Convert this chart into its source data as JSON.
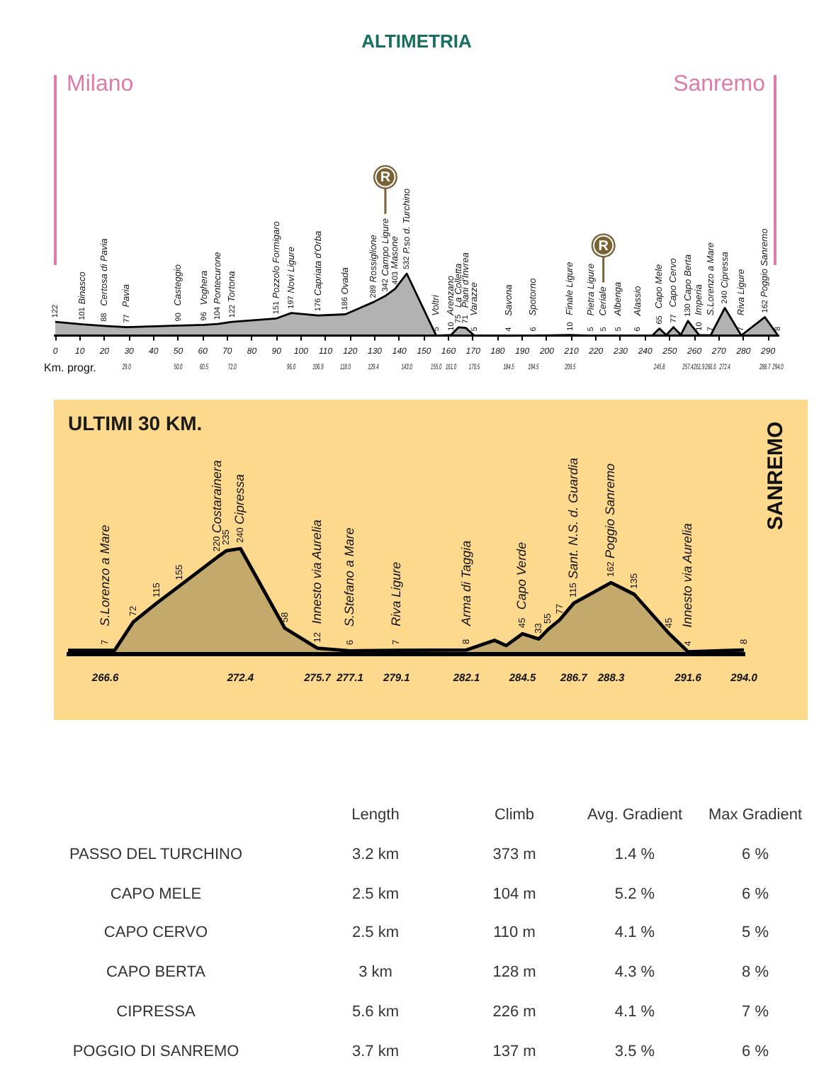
{
  "chart_data": [
    {
      "type": "area",
      "title": "ALTIMETRIA",
      "x2label": "Km. progr.",
      "xlim": [
        0,
        294
      ],
      "xticks": [
        0,
        10,
        20,
        30,
        40,
        50,
        60,
        70,
        80,
        90,
        100,
        110,
        120,
        130,
        140,
        150,
        160,
        170,
        180,
        190,
        200,
        210,
        220,
        230,
        240,
        250,
        260,
        270,
        280,
        290
      ],
      "x2lim": [
        0,
        294
      ],
      "x2ticks": [
        {
          "value": 29,
          "label": "29.0"
        },
        {
          "value": 50,
          "label": "50.0"
        },
        60.5,
        {
          "value": 72,
          "label": "72.0"
        },
        {
          "value": 96,
          "label": "96.0"
        },
        106.9,
        {
          "value": 118,
          "label": "118.0"
        },
        129.4,
        {
          "value": 143,
          "label": "143.0"
        },
        {
          "value": 155,
          "label": "155.0"
        },
        {
          "value": 161,
          "label": "161.0"
        },
        170.5,
        184.5,
        194.5,
        209.5,
        245.8,
        257.4,
        261.9,
        266.6,
        272.4,
        288.7,
        {
          "value": 294,
          "label": "294.0"
        }
      ],
      "tick_labels": "x",
      "marker": "none",
      "series": [
        {
          "color": "#000000",
          "x": [
            0,
            11,
            20,
            29,
            50,
            60.5,
            66,
            72,
            90,
            96,
            106.9,
            118,
            129.4,
            134.3,
            138.3,
            143,
            155,
            161,
            164,
            167,
            170.5,
            184.5,
            194.5,
            209.5,
            218,
            223,
            229,
            237,
            243,
            245.8,
            248.6,
            251.5,
            254.5,
            257.4,
            261.9,
            266.6,
            272.4,
            279.1,
            288.7,
            294
          ],
          "values": [
            122,
            101,
            88,
            77,
            90,
            96,
            104,
            122,
            151,
            197,
            176,
            186,
            289,
            342,
            403,
            532,
            5,
            10,
            75,
            71,
            5,
            4,
            6,
            10,
            5,
            5,
            5,
            6,
            8,
            65,
            10,
            77,
            12,
            130,
            10,
            7,
            240,
            7,
            162,
            8
          ],
          "value_labels": [
            "122",
            "101",
            "88",
            "77",
            "90",
            "96",
            "104",
            "122",
            "151",
            "197",
            "176",
            "186",
            "289",
            "342",
            "403",
            "532",
            "5",
            "10",
            "75",
            "71",
            "5",
            "4",
            "6",
            "10",
            "5",
            "5",
            "5",
            "6",
            null,
            "65",
            null,
            "77",
            null,
            "130",
            "10",
            "7",
            "240",
            "7",
            "162",
            "8"
          ]
        }
      ],
      "annotations": [
        "Milano",
        "Sanremo",
        {
          "text": "Binasco",
          "x": 11,
          "y": 101
        },
        {
          "text": "Certosa di Pavia",
          "x": 20,
          "y": 88
        },
        {
          "text": "Pavia",
          "x": 29,
          "y": 77
        },
        {
          "text": "Casteggio",
          "x": 50,
          "y": 90
        },
        {
          "text": "Voghera",
          "x": 60.5,
          "y": 96
        },
        {
          "text": "Pontecurone",
          "x": 66,
          "y": 104
        },
        {
          "text": "Tortona",
          "x": 72,
          "y": 122
        },
        {
          "text": "Pozzolo Formigaro",
          "x": 90,
          "y": 151
        },
        {
          "text": "Novi Ligure",
          "x": 96,
          "y": 197
        },
        {
          "text": "Capriata d'Orba",
          "x": 106.9,
          "y": 176
        },
        {
          "text": "Ovada",
          "x": 118,
          "y": 186
        },
        {
          "text": "Rossiglione",
          "x": 129.4,
          "y": 289
        },
        {
          "text": "Campo Ligure",
          "x": 134.3,
          "y": 342
        },
        {
          "text": "Masone",
          "x": 138.3,
          "y": 403
        },
        {
          "text": "P.so d. Turchino",
          "x": 143,
          "y": 532
        },
        {
          "text": "Voltri",
          "x": 155,
          "y": 5
        },
        {
          "text": "Arenzano",
          "x": 161,
          "y": 10
        },
        {
          "text": "La Colletta",
          "x": 164,
          "y": 75
        },
        {
          "text": "Piani d'Invrea",
          "x": 167,
          "y": 71
        },
        {
          "text": "Varazze",
          "x": 170.5,
          "y": 5
        },
        {
          "text": "Savona",
          "x": 184.5,
          "y": 4
        },
        {
          "text": "Spotorno",
          "x": 194.5,
          "y": 6
        },
        {
          "text": "Finale Ligure",
          "x": 209.5,
          "y": 10
        },
        {
          "text": "Pietra Ligure",
          "x": 218,
          "y": 5
        },
        {
          "text": "Ceriale",
          "x": 223,
          "y": 5
        },
        {
          "text": "Albenga",
          "x": 229,
          "y": 5
        },
        {
          "text": "Alassio",
          "x": 237,
          "y": 6
        },
        {
          "text": "Capo Mele",
          "x": 245.8,
          "y": 65
        },
        {
          "text": "Capo Cervo",
          "x": 251.5,
          "y": 77
        },
        {
          "text": "Capo Berta",
          "x": 257.4,
          "y": 130
        },
        {
          "text": "Imperia",
          "x": 261.9,
          "y": 10
        },
        {
          "text": "S.Lorenzo a Mare",
          "x": 266.6,
          "y": 7
        },
        {
          "text": "Cipressa",
          "x": 272.4,
          "y": 240
        },
        {
          "text": "Riva Ligure",
          "x": 279.1,
          "y": 7
        },
        {
          "text": "Poggio Sanremo",
          "x": 288.7,
          "y": 162
        }
      ],
      "ref_lines": [
        {
          "axis": "x",
          "value": 134.3,
          "label": "R",
          "color": "#7a6235"
        },
        {
          "axis": "x",
          "value": 223,
          "label": "R",
          "color": "#7a6235"
        }
      ]
    },
    {
      "type": "area",
      "title": "ULTIMI 30 KM.",
      "xlim": [
        265,
        294
      ],
      "xticks": [
        266.6,
        272.4,
        275.7,
        277.1,
        279.1,
        282.1,
        284.5,
        286.7,
        288.3,
        291.6,
        {
          "value": 294,
          "label": "294.0"
        }
      ],
      "tick_labels": "x",
      "marker": "none",
      "series": [
        {
          "color": "#000000",
          "x": [
            265,
            266.6,
            267.0,
            267.8,
            268.8,
            269.8,
            271.4,
            271.8,
            272.4,
            274.3,
            275.7,
            277.1,
            279.1,
            282.1,
            283.3,
            283.8,
            284.5,
            285.2,
            285.6,
            286.1,
            286.7,
            288.3,
            289.3,
            290.8,
            291.6,
            294
          ],
          "values": [
            7,
            7,
            7,
            72,
            115,
            155,
            220,
            235,
            240,
            58,
            12,
            6,
            7,
            8,
            30,
            18,
            45,
            33,
            55,
            77,
            115,
            162,
            135,
            45,
            4,
            8
          ],
          "value_labels": [
            null,
            "7",
            null,
            "72",
            "115",
            "155",
            "220",
            "235",
            "240",
            "58",
            "12",
            "6",
            "7",
            "8",
            null,
            null,
            "45",
            "33",
            "55",
            "77",
            "115",
            "162",
            "135",
            "45",
            "4",
            "8"
          ]
        }
      ],
      "annotations": [
        "SANREMO",
        {
          "text": "S.Lorenzo a Mare",
          "x": 266.6,
          "y": 7
        },
        {
          "text": "Costarainera",
          "x": 271.4,
          "y": 220
        },
        {
          "text": "Cipressa",
          "x": 272.4,
          "y": 240
        },
        {
          "text": "Innesto via Aurelia",
          "x": 275.7,
          "y": 12
        },
        {
          "text": "S.Stefano a Mare",
          "x": 277.1,
          "y": 6
        },
        {
          "text": "Riva Ligure",
          "x": 279.1,
          "y": 7
        },
        {
          "text": "Arma di Taggia",
          "x": 282.1,
          "y": 8
        },
        {
          "text": "Capo Verde",
          "x": 284.5,
          "y": 45
        },
        {
          "text": "Sant. N.S. d. Guardia",
          "x": 286.7,
          "y": 115
        },
        {
          "text": "Poggio Sanremo",
          "x": 288.3,
          "y": 162
        },
        {
          "text": "Innesto via Aurelia",
          "x": 291.6,
          "y": 4
        }
      ]
    },
    {
      "type": "other",
      "categories": [
        "PASSO DEL TURCHINO",
        "CAPO MELE",
        "CAPO CERVO",
        "CAPO BERTA",
        "CIPRESSA",
        "POGGIO DI SANREMO"
      ],
      "series": [
        {
          "name": "Length",
          "values": [
            3.2,
            2.5,
            2.5,
            3,
            5.6,
            3.7
          ],
          "value_labels": [
            "3.2 km",
            "2.5 km",
            "2.5 km",
            "3 km",
            "5.6 km",
            "3.7 km"
          ]
        },
        {
          "name": "Climb",
          "values": [
            373,
            104,
            110,
            128,
            226,
            137
          ],
          "value_labels": [
            "373 m",
            "104 m",
            "110 m",
            "128 m",
            "226 m",
            "137 m"
          ]
        },
        {
          "name": "Avg. Gradient",
          "values": [
            1.4,
            5.2,
            4.1,
            4.3,
            4.1,
            3.5
          ],
          "value_labels": [
            "1.4 %",
            "5.2 %",
            "4.1 %",
            "4.3 %",
            "4.1 %",
            "3.5 %"
          ]
        },
        {
          "name": "Max Gradient",
          "values": [
            6,
            6,
            5,
            8,
            7,
            6
          ],
          "value_labels": [
            "6 %",
            "6 %",
            "5 %",
            "8 %",
            "7 %",
            "6 %"
          ]
        }
      ]
    }
  ]
}
